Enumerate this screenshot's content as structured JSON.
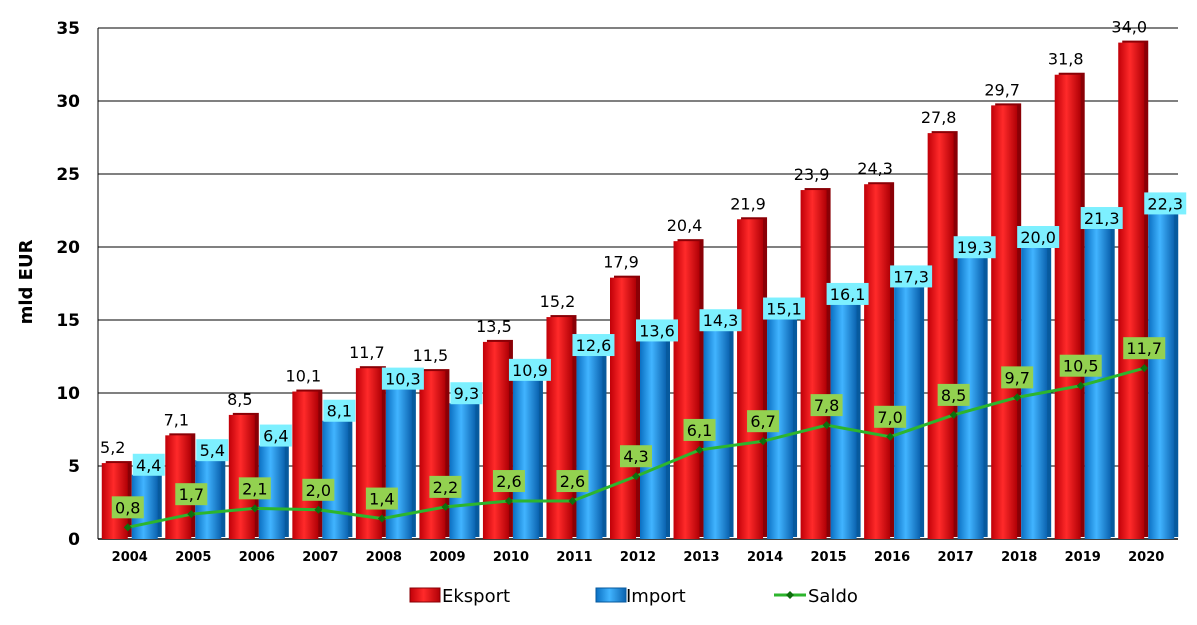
{
  "chart_data": {
    "type": "bar",
    "title": "",
    "xlabel": "",
    "ylabel": "mld EUR",
    "ylim": [
      0,
      35
    ],
    "yticks": [
      0,
      5,
      10,
      15,
      20,
      25,
      30,
      35
    ],
    "grid": true,
    "legend_position": "bottom",
    "categories": [
      "2004",
      "2005",
      "2006",
      "2007",
      "2008",
      "2009",
      "2010",
      "2011",
      "2012",
      "2013",
      "2014",
      "2015",
      "2016",
      "2017",
      "2018",
      "2019",
      "2020"
    ],
    "series": [
      {
        "name": "Eksport",
        "type": "bar",
        "color": "#e8000d",
        "values": [
          5.2,
          7.1,
          8.5,
          10.1,
          11.7,
          11.5,
          13.5,
          15.2,
          17.9,
          20.4,
          21.9,
          23.9,
          24.3,
          27.8,
          29.7,
          31.8,
          34.0
        ],
        "labels": [
          "5,2",
          "7,1",
          "8,5",
          "10,1",
          "11,7",
          "11,5",
          "13,5",
          "15,2",
          "17,9",
          "20,4",
          "21,9",
          "23,9",
          "24,3",
          "27,8",
          "29,7",
          "31,8",
          "34,0"
        ]
      },
      {
        "name": "Import",
        "type": "bar",
        "color": "#1e90e6",
        "label_bg": "#7df0ff",
        "values": [
          4.4,
          5.4,
          6.4,
          8.1,
          10.3,
          9.3,
          10.9,
          12.6,
          13.6,
          14.3,
          15.1,
          16.1,
          17.3,
          19.3,
          20.0,
          21.3,
          22.3
        ],
        "labels": [
          "4,4",
          "5,4",
          "6,4",
          "8,1",
          "10,3",
          "9,3",
          "10,9",
          "12,6",
          "13,6",
          "14,3",
          "15,1",
          "16,1",
          "17,3",
          "19,3",
          "20,0",
          "21,3",
          "22,3"
        ]
      },
      {
        "name": "Saldo",
        "type": "line",
        "color": "#2db52d",
        "label_bg": "#93d150",
        "values": [
          0.8,
          1.7,
          2.1,
          2.0,
          1.4,
          2.2,
          2.6,
          2.6,
          4.3,
          6.1,
          6.7,
          7.8,
          7.0,
          8.5,
          9.7,
          10.5,
          11.7
        ],
        "labels": [
          "0,8",
          "1,7",
          "2,1",
          "2,0",
          "1,4",
          "2,2",
          "2,6",
          "2,6",
          "4,3",
          "6,1",
          "6,7",
          "7,8",
          "7,0",
          "8,5",
          "9,7",
          "10,5",
          "11,7"
        ]
      }
    ],
    "ytick_labels": [
      "0",
      "5",
      "10",
      "15",
      "20",
      "25",
      "30",
      "35"
    ]
  }
}
